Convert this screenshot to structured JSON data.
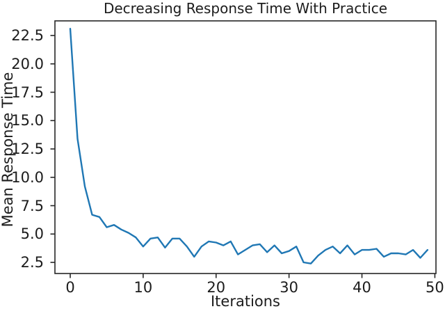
{
  "chart_data": {
    "type": "line",
    "title": "Decreasing Response Time With Practice",
    "xlabel": "Iterations",
    "ylabel": "Mean Response Time",
    "x": [
      0,
      1,
      2,
      3,
      4,
      5,
      6,
      7,
      8,
      9,
      10,
      11,
      12,
      13,
      14,
      15,
      16,
      17,
      18,
      19,
      20,
      21,
      22,
      23,
      24,
      25,
      26,
      27,
      28,
      29,
      30,
      31,
      32,
      33,
      34,
      35,
      36,
      37,
      38,
      39,
      40,
      41,
      42,
      43,
      44,
      45,
      46,
      47,
      48,
      49
    ],
    "series": [
      {
        "name": "Mean Response Time",
        "values": [
          23.1,
          13.4,
          9.2,
          6.7,
          6.5,
          5.6,
          5.8,
          5.4,
          5.1,
          4.7,
          3.9,
          4.6,
          4.7,
          3.8,
          4.6,
          4.6,
          3.9,
          3.0,
          3.9,
          4.35,
          4.25,
          4.0,
          4.35,
          3.2,
          3.6,
          4.0,
          4.1,
          3.4,
          4.0,
          3.3,
          3.5,
          3.9,
          2.5,
          2.4,
          3.1,
          3.6,
          3.9,
          3.3,
          4.0,
          3.2,
          3.6,
          3.6,
          3.7,
          3.0,
          3.3,
          3.3,
          3.2,
          3.6,
          2.9,
          3.6
        ]
      }
    ],
    "xticks": [
      {
        "value": 0,
        "label": "0"
      },
      {
        "value": 10,
        "label": "10"
      },
      {
        "value": 20,
        "label": "20"
      },
      {
        "value": 30,
        "label": "30"
      },
      {
        "value": 40,
        "label": "40"
      },
      {
        "value": 50,
        "label": "50"
      }
    ],
    "yticks": [
      {
        "value": 2.5,
        "label": "2.5"
      },
      {
        "value": 5.0,
        "label": "5.0"
      },
      {
        "value": 7.5,
        "label": "7.5"
      },
      {
        "value": 10.0,
        "label": "10.0"
      },
      {
        "value": 12.5,
        "label": "12.5"
      },
      {
        "value": 15.0,
        "label": "15.0"
      },
      {
        "value": 17.5,
        "label": "17.5"
      },
      {
        "value": 20.0,
        "label": "20.0"
      },
      {
        "value": 22.5,
        "label": "22.5"
      }
    ],
    "xlim": [
      -2.1,
      50.15
    ],
    "ylim": [
      1.52,
      23.79
    ],
    "grid": false,
    "legend_position": "none",
    "line_color": "#1f77b4",
    "axis_color": "#262626",
    "text_color": "#1c1c1c",
    "background": "#ffffff"
  }
}
